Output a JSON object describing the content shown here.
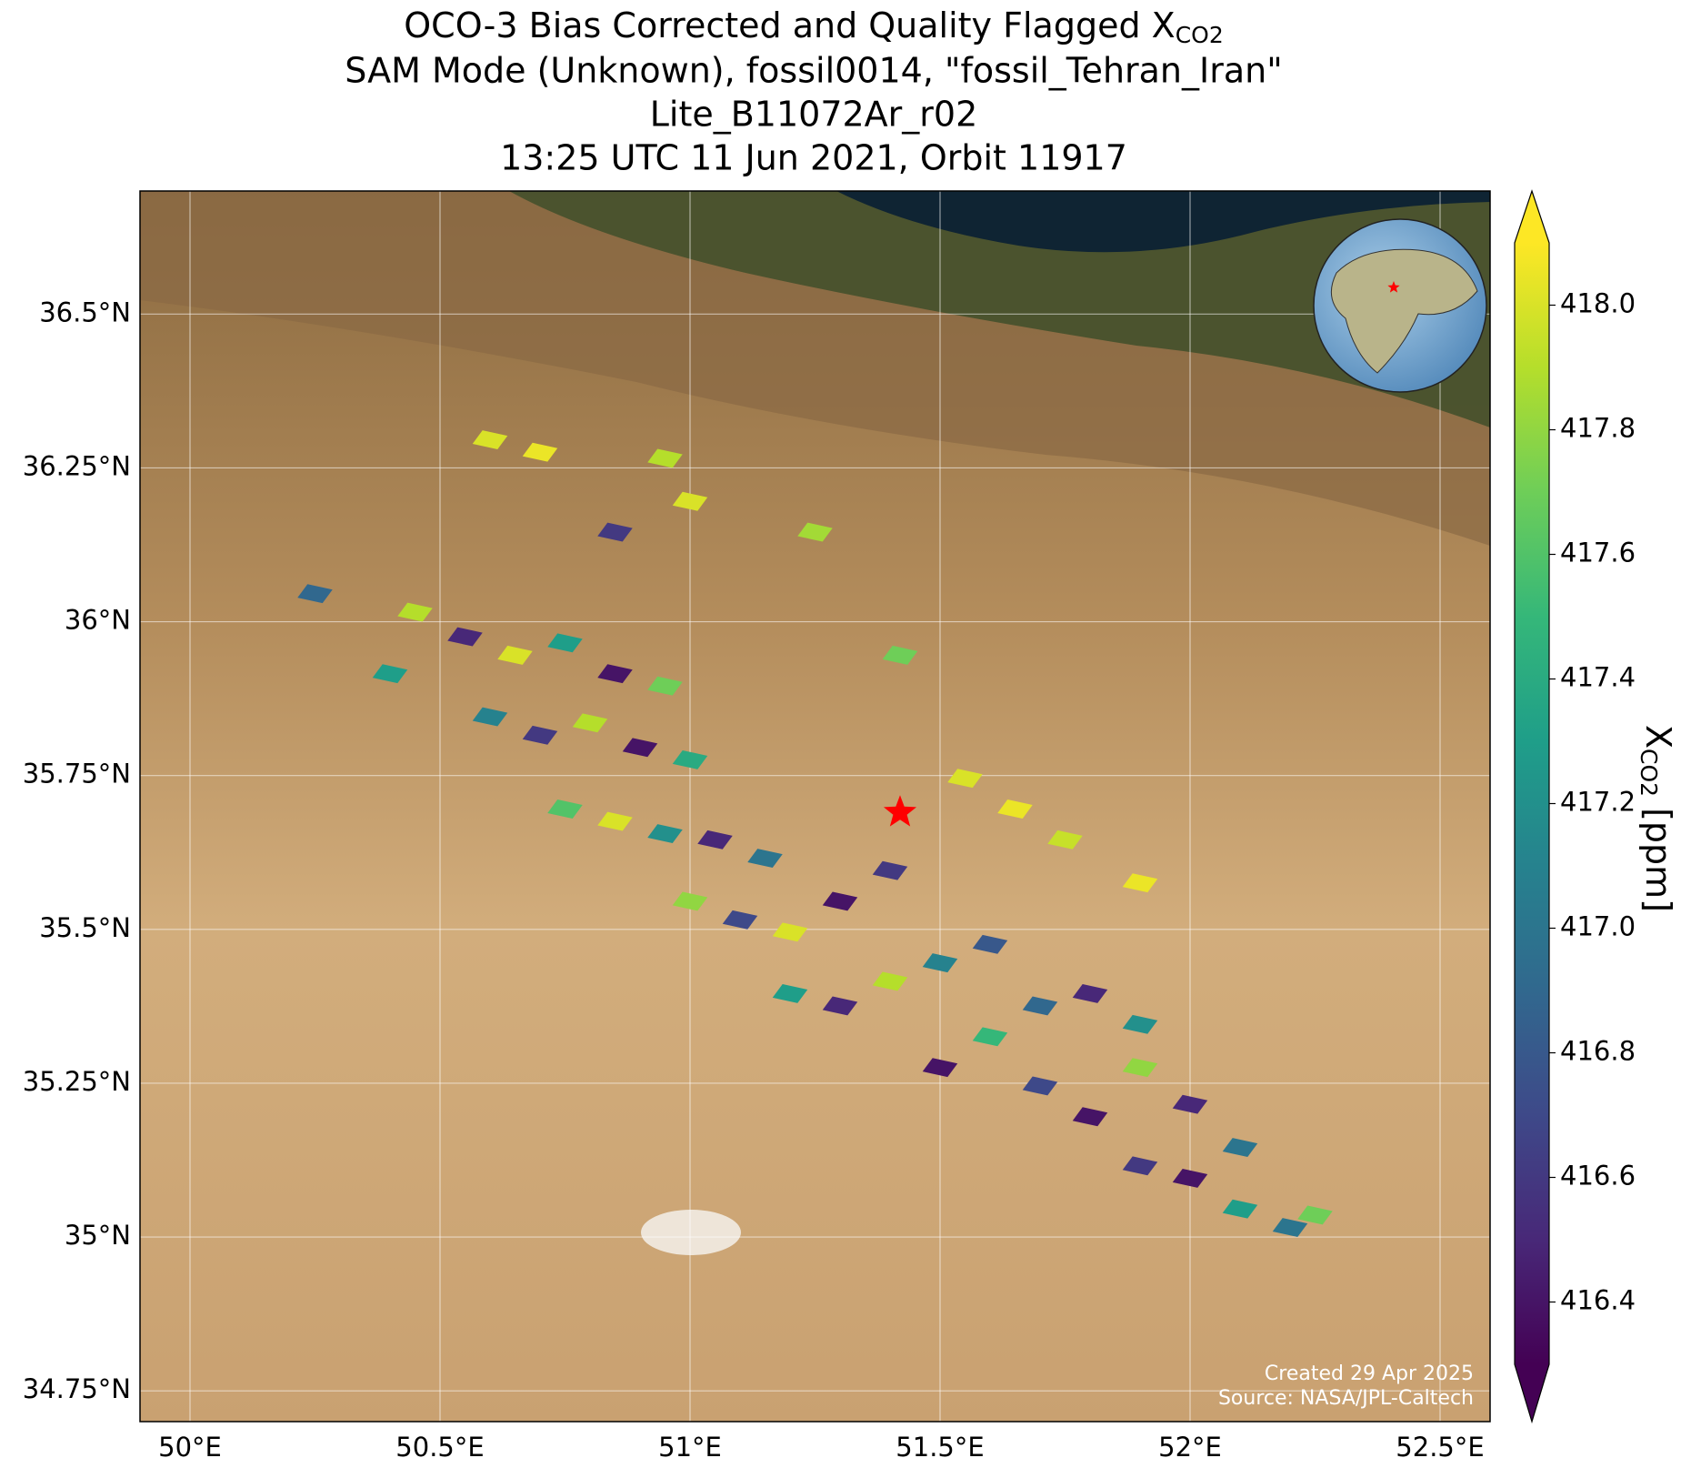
{
  "chart_data": {
    "type": "map",
    "title": {
      "main": "OCO-3 Bias Corrected and Quality Flagged X",
      "sub": "CO2"
    },
    "subtitle_lines": [
      "SAM Mode (Unknown), fossil0014, \"fossil_Tehran_Iran\"",
      "Lite_B11072Ar_r02",
      "13:25 UTC 11 Jun 2021, Orbit 11917"
    ],
    "xlim": [
      49.9,
      52.6
    ],
    "ylim": [
      34.7,
      36.7
    ],
    "xticks": [
      {
        "value": 50,
        "label": "50°E"
      },
      {
        "value": 50.5,
        "label": "50.5°E"
      },
      {
        "value": 51,
        "label": "51°E"
      },
      {
        "value": 51.5,
        "label": "51.5°E"
      },
      {
        "value": 52,
        "label": "52°E"
      },
      {
        "value": 52.5,
        "label": "52.5°E"
      }
    ],
    "yticks": [
      {
        "value": 34.75,
        "label": "34.75°N"
      },
      {
        "value": 35,
        "label": "35°N"
      },
      {
        "value": 35.25,
        "label": "35.25°N"
      },
      {
        "value": 35.5,
        "label": "35.5°N"
      },
      {
        "value": 35.75,
        "label": "35.75°N"
      },
      {
        "value": 36,
        "label": "36°N"
      },
      {
        "value": 36.25,
        "label": "36.25°N"
      },
      {
        "value": 36.5,
        "label": "36.5°N"
      }
    ],
    "grid": true,
    "target": {
      "lon": 51.42,
      "lat": 35.69,
      "color": "#ff0000"
    },
    "colormap": "viridis",
    "colorbar": {
      "label": "X",
      "label_sub": "CO2",
      "label_unit": "[ppm]",
      "lim": [
        416.3,
        418.1
      ],
      "ticks": [
        416.4,
        416.6,
        416.8,
        {
          "value": 417,
          "label": "417.0"
        },
        417.2,
        417.4,
        417.6,
        417.8,
        {
          "value": 418,
          "label": "418.0"
        }
      ]
    },
    "soundings": {
      "lon": [
        50.55,
        50.65,
        50.75,
        50.85,
        50.95,
        50.6,
        50.7,
        50.8,
        50.9,
        51.0,
        50.75,
        50.85,
        50.95,
        51.05,
        51.15,
        51.0,
        51.1,
        51.2,
        51.3,
        51.4,
        51.2,
        51.3,
        51.4,
        51.5,
        51.6,
        51.5,
        51.6,
        51.7,
        51.8,
        51.9,
        51.7,
        51.8,
        51.9,
        52.0,
        52.1,
        51.9,
        52.0,
        52.1,
        52.2,
        52.25,
        50.6,
        50.7,
        50.95,
        51.0,
        51.25,
        50.85,
        51.42,
        51.55,
        51.65,
        51.75,
        51.9,
        50.25,
        50.4,
        50.45
      ],
      "lat": [
        35.98,
        35.95,
        35.97,
        35.92,
        35.9,
        35.85,
        35.82,
        35.84,
        35.8,
        35.78,
        35.7,
        35.68,
        35.66,
        35.65,
        35.62,
        35.55,
        35.52,
        35.5,
        35.55,
        35.6,
        35.4,
        35.38,
        35.42,
        35.45,
        35.48,
        35.28,
        35.33,
        35.38,
        35.4,
        35.35,
        35.25,
        35.2,
        35.28,
        35.22,
        35.15,
        35.12,
        35.1,
        35.05,
        35.02,
        35.04,
        36.3,
        36.28,
        36.27,
        36.2,
        36.15,
        36.15,
        35.95,
        35.75,
        35.7,
        35.65,
        35.58,
        36.05,
        35.92,
        36.02
      ],
      "values": [
        416.5,
        418.0,
        417.3,
        416.4,
        417.7,
        417.1,
        416.6,
        417.9,
        416.4,
        417.4,
        417.6,
        418.0,
        417.2,
        416.5,
        417.0,
        417.8,
        416.7,
        418.0,
        416.4,
        416.6,
        417.3,
        416.5,
        417.9,
        417.1,
        416.8,
        416.4,
        417.5,
        416.9,
        416.5,
        417.2,
        416.7,
        416.4,
        417.8,
        416.5,
        417.0,
        416.6,
        416.4,
        417.3,
        417.0,
        417.7,
        418.0,
        418.05,
        417.9,
        418.0,
        417.85,
        416.6,
        417.7,
        418.0,
        418.05,
        417.95,
        418.05,
        416.9,
        417.3,
        417.9
      ]
    },
    "annotations": [
      "Created 29 Apr 2025",
      "Source: NASA/JPL-Caltech"
    ]
  }
}
